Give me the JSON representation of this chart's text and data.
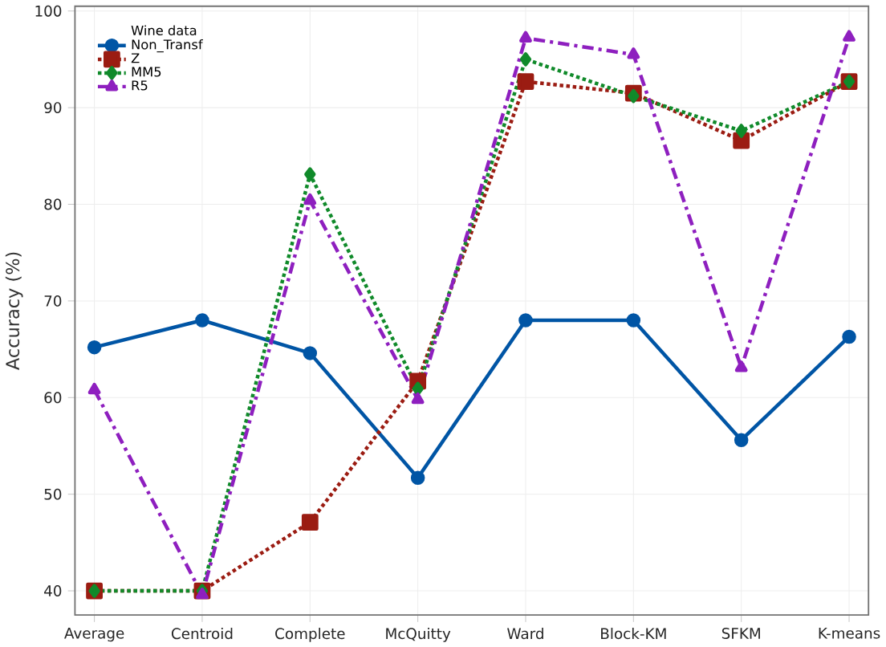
{
  "chart_data": {
    "type": "line",
    "ylabel": "Accuracy (%)",
    "legend_title": "Wine data",
    "legend": "top left",
    "grid": true,
    "categories": [
      "Average",
      "Centroid",
      "Complete",
      "McQuitty",
      "Ward",
      "Block-KM",
      "SFKM",
      "K-means"
    ],
    "ylim": [
      37.5,
      100.5
    ],
    "yticks": [
      40,
      50,
      60,
      70,
      80,
      90,
      100
    ],
    "series": [
      {
        "name": "Non_Transf",
        "color": "#0055a5",
        "marker": "circle",
        "line_style": "solid",
        "values": [
          65.2,
          68.0,
          64.6,
          51.7,
          68.0,
          68.0,
          55.6,
          66.3
        ]
      },
      {
        "name": "Z",
        "color": "#9b1c12",
        "marker": "square",
        "line_style": "dotted",
        "values": [
          40.0,
          40.0,
          47.1,
          61.7,
          92.7,
          91.5,
          86.6,
          92.7
        ]
      },
      {
        "name": "MM5",
        "color": "#108a2a",
        "marker": "diamond",
        "line_style": "dotted",
        "values": [
          40.0,
          40.0,
          83.1,
          60.9,
          95.0,
          91.2,
          87.6,
          92.7
        ]
      },
      {
        "name": "R5",
        "color": "#8e1fbf",
        "marker": "triangle",
        "line_style": "dashdot",
        "values": [
          60.8,
          39.6,
          80.4,
          59.8,
          97.2,
          95.5,
          63.1,
          97.3
        ]
      }
    ]
  }
}
